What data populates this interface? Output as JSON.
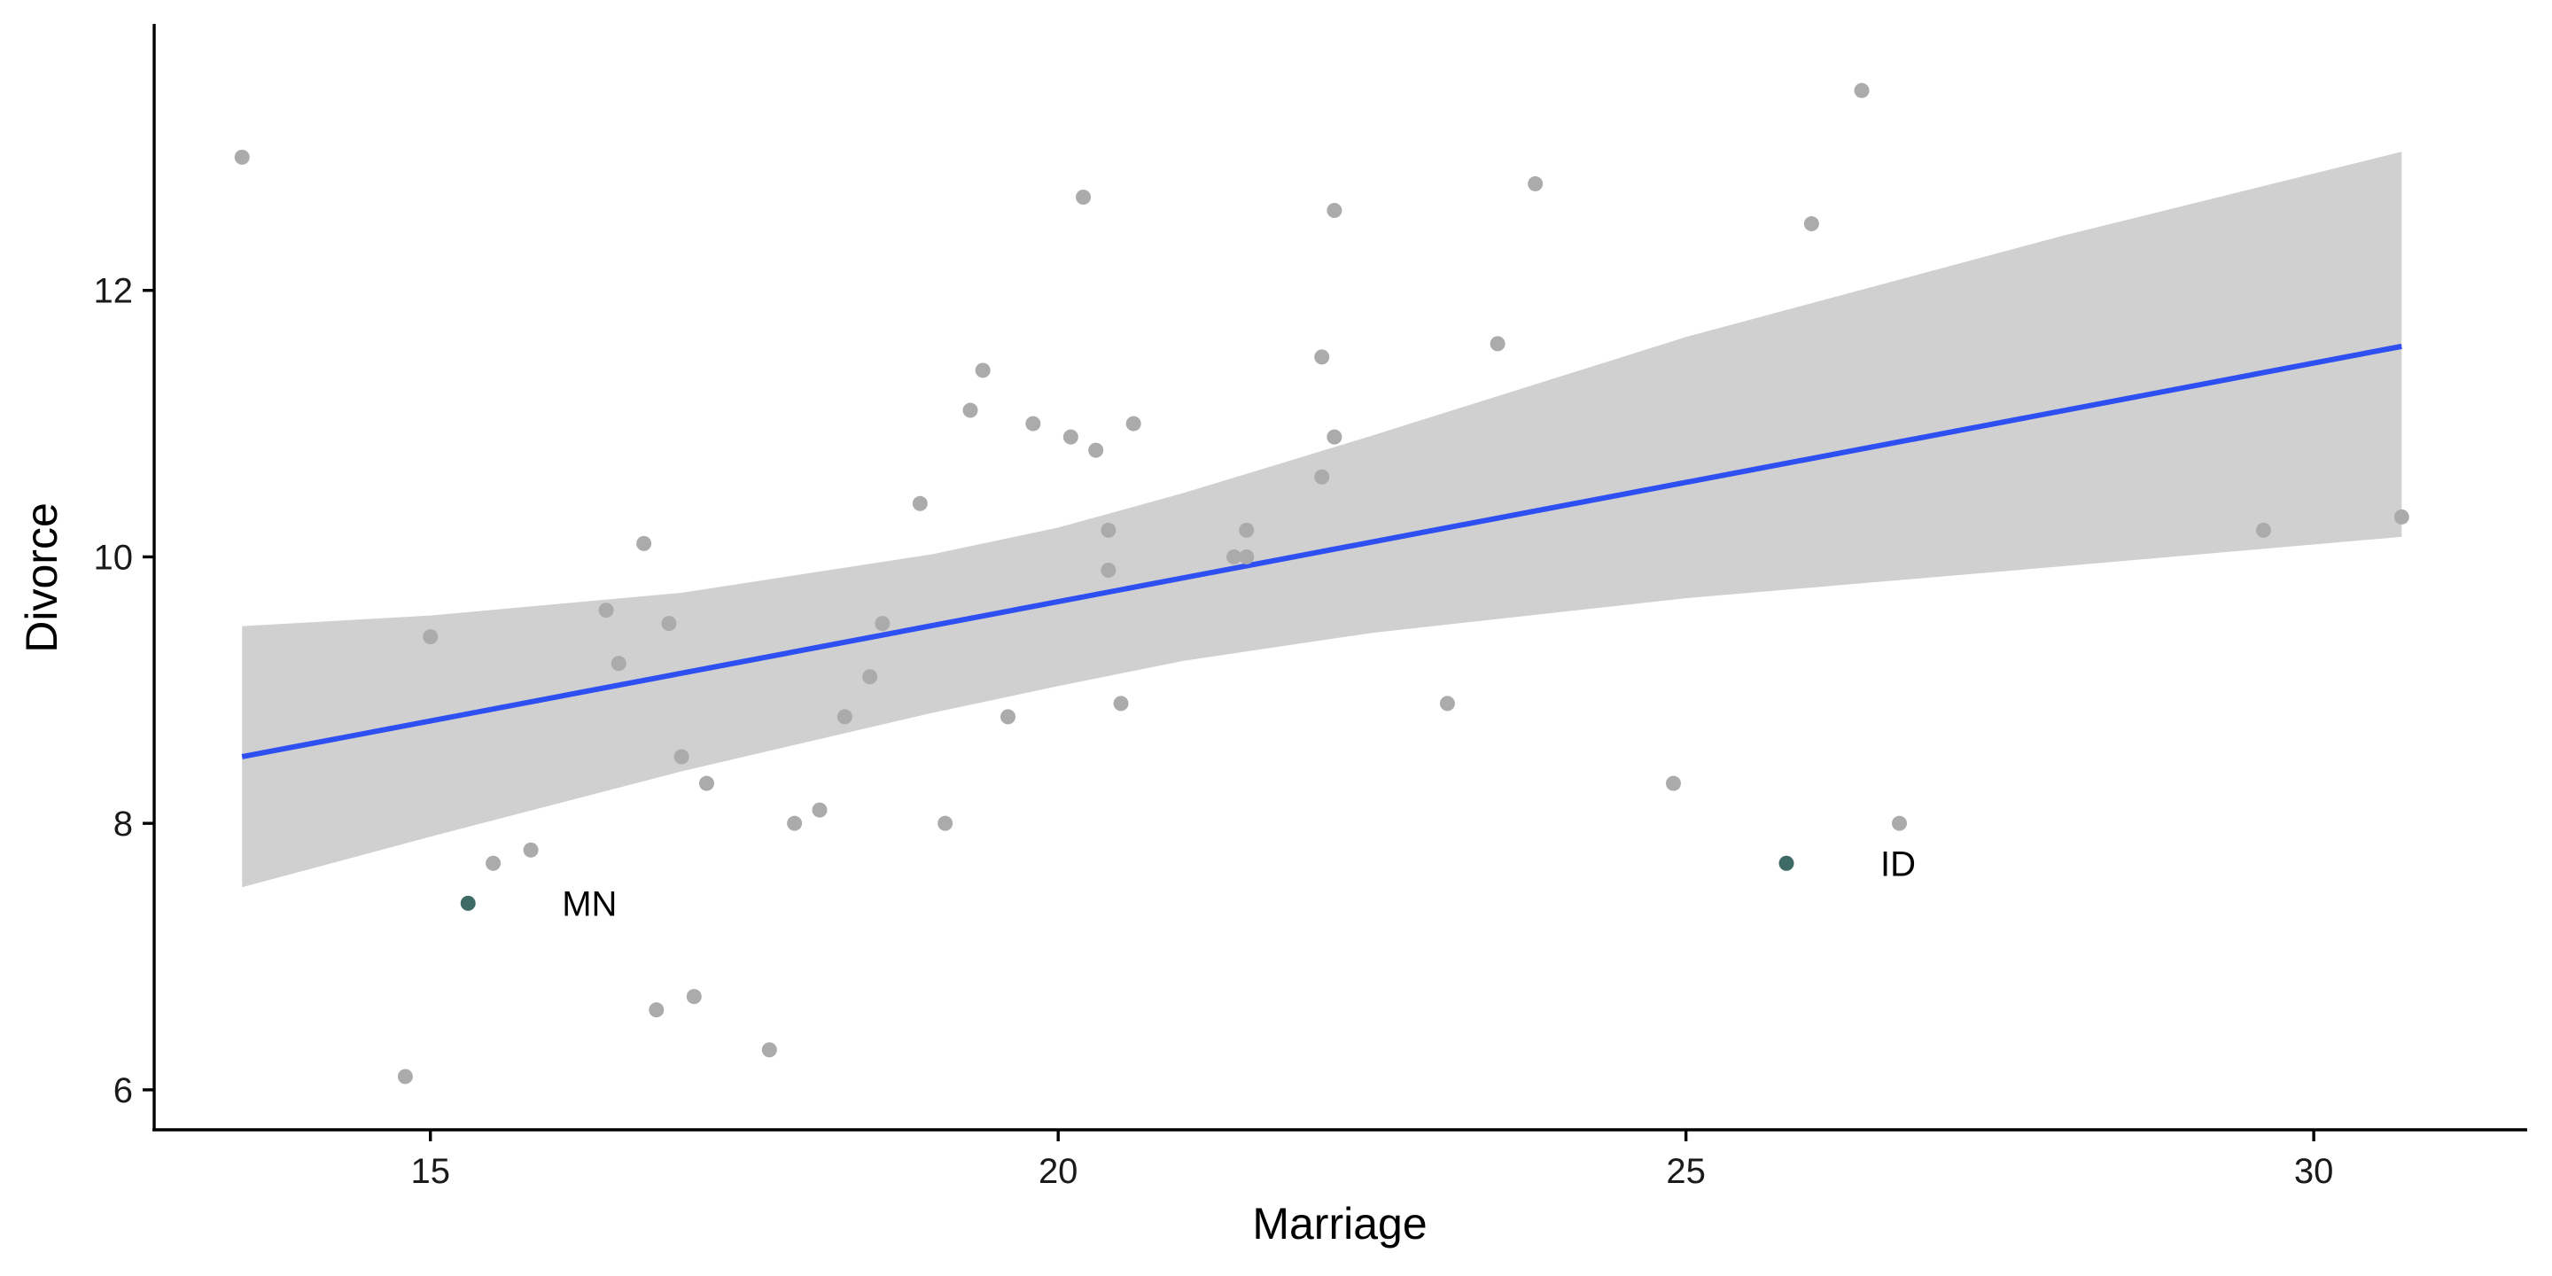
{
  "chart_data": {
    "type": "scatter",
    "xlabel": "Marriage",
    "ylabel": "Divorce",
    "xlim": [
      12.8,
      31.7
    ],
    "ylim": [
      5.7,
      14.0
    ],
    "xticks": [
      15,
      20,
      25,
      30
    ],
    "yticks": [
      6,
      8,
      10,
      12
    ],
    "grid": false,
    "legend": "none",
    "colors": {
      "points": "#ababab",
      "highlight": "#3f6b67",
      "trend": "#2e4ff2",
      "band": "#d0d0d0",
      "axis": "#000000"
    },
    "points": [
      {
        "x": 13.5,
        "y": 13.0
      },
      {
        "x": 14.8,
        "y": 6.1
      },
      {
        "x": 15.0,
        "y": 9.4
      },
      {
        "x": 15.5,
        "y": 7.7
      },
      {
        "x": 15.8,
        "y": 7.8
      },
      {
        "x": 16.4,
        "y": 9.6
      },
      {
        "x": 16.5,
        "y": 9.2
      },
      {
        "x": 16.7,
        "y": 10.1
      },
      {
        "x": 16.8,
        "y": 6.6
      },
      {
        "x": 16.9,
        "y": 9.5
      },
      {
        "x": 17.0,
        "y": 8.5
      },
      {
        "x": 17.1,
        "y": 6.7
      },
      {
        "x": 17.2,
        "y": 8.3
      },
      {
        "x": 17.7,
        "y": 6.3
      },
      {
        "x": 17.9,
        "y": 8.0
      },
      {
        "x": 18.1,
        "y": 8.1
      },
      {
        "x": 18.3,
        "y": 8.8
      },
      {
        "x": 18.5,
        "y": 9.1
      },
      {
        "x": 18.6,
        "y": 9.5
      },
      {
        "x": 18.9,
        "y": 10.4
      },
      {
        "x": 19.1,
        "y": 8.0
      },
      {
        "x": 19.3,
        "y": 11.1
      },
      {
        "x": 19.4,
        "y": 11.4
      },
      {
        "x": 19.6,
        "y": 8.8
      },
      {
        "x": 19.8,
        "y": 11.0
      },
      {
        "x": 20.1,
        "y": 10.9
      },
      {
        "x": 20.2,
        "y": 12.7
      },
      {
        "x": 20.3,
        "y": 10.8
      },
      {
        "x": 20.4,
        "y": 10.2
      },
      {
        "x": 20.4,
        "y": 9.9
      },
      {
        "x": 20.5,
        "y": 8.9
      },
      {
        "x": 20.6,
        "y": 11.0
      },
      {
        "x": 21.4,
        "y": 10.0
      },
      {
        "x": 21.5,
        "y": 10.0
      },
      {
        "x": 21.5,
        "y": 10.2
      },
      {
        "x": 22.1,
        "y": 11.5
      },
      {
        "x": 22.1,
        "y": 10.6
      },
      {
        "x": 22.2,
        "y": 12.6
      },
      {
        "x": 22.2,
        "y": 10.9
      },
      {
        "x": 23.1,
        "y": 8.9
      },
      {
        "x": 23.5,
        "y": 11.6
      },
      {
        "x": 23.8,
        "y": 12.8
      },
      {
        "x": 24.9,
        "y": 8.3
      },
      {
        "x": 26.0,
        "y": 12.5
      },
      {
        "x": 26.4,
        "y": 13.5
      },
      {
        "x": 26.7,
        "y": 8.0
      },
      {
        "x": 29.6,
        "y": 10.2
      },
      {
        "x": 30.7,
        "y": 10.3
      }
    ],
    "highlighted": [
      {
        "label": "MN",
        "x": 15.3,
        "y": 7.4
      },
      {
        "label": "ID",
        "x": 25.8,
        "y": 7.7
      }
    ],
    "trend_line": {
      "x": [
        13.5,
        30.7
      ],
      "y": [
        8.5,
        11.58
      ]
    },
    "confidence_band": {
      "x": [
        13.5,
        15.0,
        17.0,
        19.0,
        20.0,
        21.0,
        22.5,
        25.0,
        28.0,
        30.7
      ],
      "upper": [
        9.48,
        9.56,
        9.73,
        10.02,
        10.22,
        10.48,
        10.91,
        11.65,
        12.41,
        13.04
      ],
      "lower": [
        7.52,
        7.9,
        8.39,
        8.83,
        9.03,
        9.22,
        9.43,
        9.69,
        9.93,
        10.15
      ]
    }
  }
}
